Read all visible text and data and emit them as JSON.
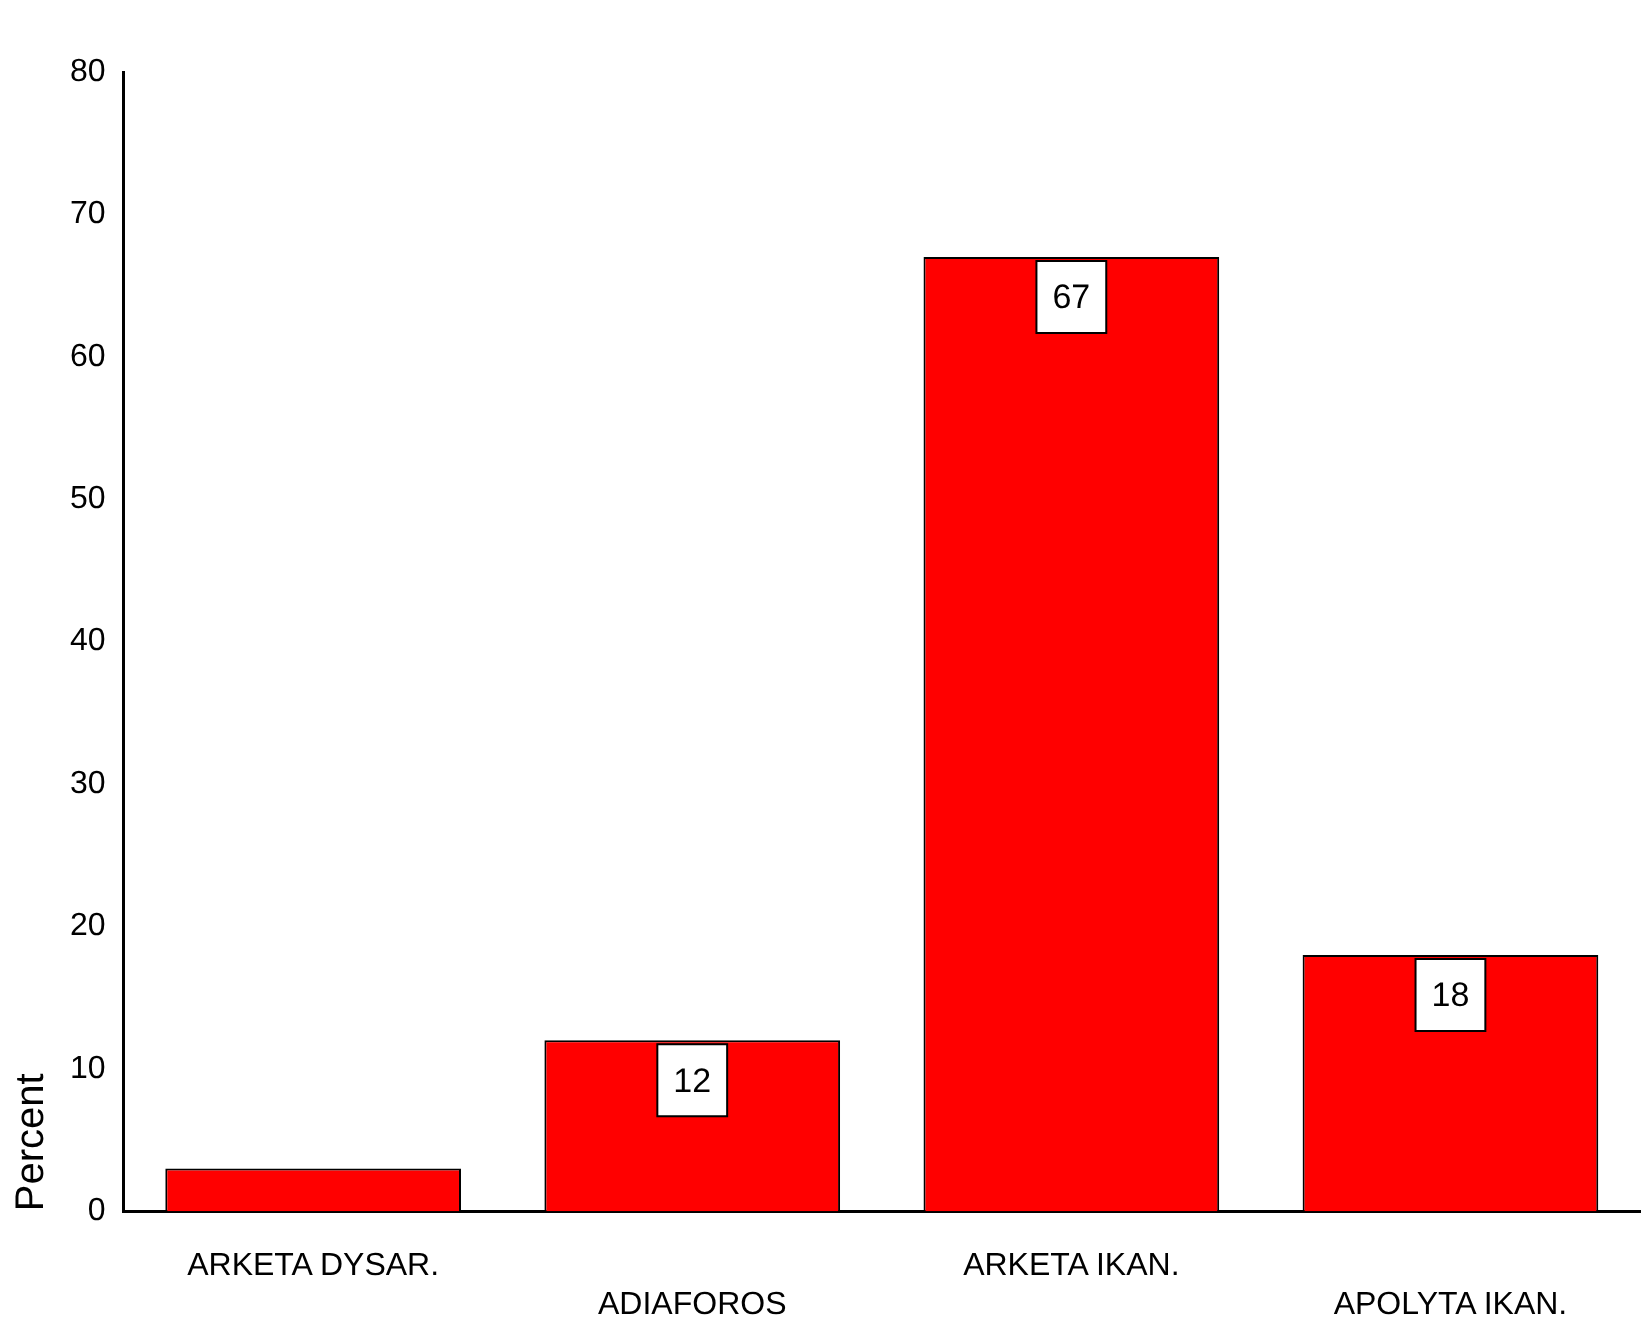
{
  "chart_data": {
    "type": "bar",
    "ylabel": "Percent",
    "categories": [
      "ARKETA DYSAR.",
      "ADIAFOROS",
      "ARKETA IKAN.",
      "APOLYTA IKAN."
    ],
    "values": [
      3,
      12,
      67,
      18
    ],
    "color": "#ff0000",
    "value_labels": [
      null,
      "12",
      "67",
      "18"
    ],
    "ylim": [
      0,
      80
    ],
    "yticks": [
      0,
      10,
      20,
      30,
      40,
      50,
      60,
      70,
      80
    ],
    "grid": false,
    "legend": false
  }
}
